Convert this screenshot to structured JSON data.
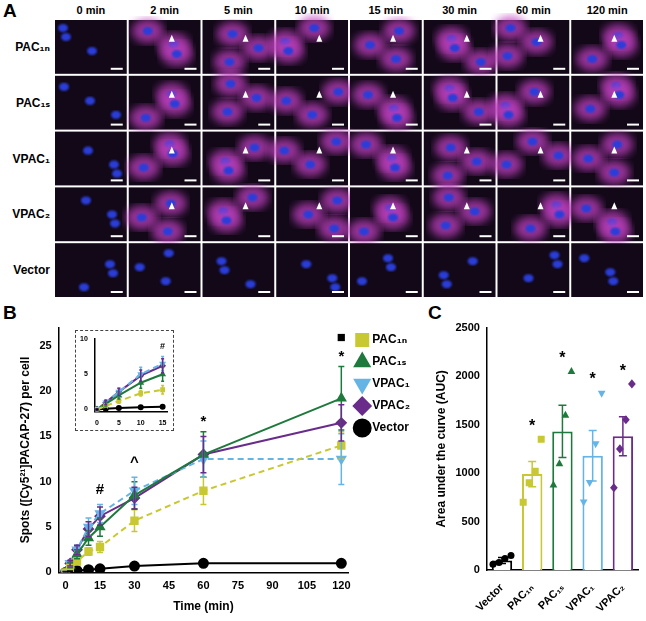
{
  "figure": {
    "panel_labels": [
      "A",
      "B",
      "C"
    ],
    "image_grid": {
      "columns": [
        "0 min",
        "2 min",
        "5 min",
        "10 min",
        "15 min",
        "30 min",
        "60 min",
        "120 min"
      ],
      "rows": [
        "PAC₁ₙ",
        "PAC₁ₛ",
        "VPAC₁",
        "VPAC₂",
        "Vector"
      ]
    }
  },
  "chart_data": [
    {
      "type": "line",
      "x_label": "Time (min)",
      "y_label": "Spots ([Cy5²¹]PACAP-27) per cell",
      "x": [
        0,
        2,
        5,
        10,
        15,
        30,
        60,
        120
      ],
      "xlim": [
        -3,
        123
      ],
      "xticks": [
        0,
        15,
        30,
        45,
        60,
        75,
        90,
        105,
        120
      ],
      "ylim": [
        0,
        27
      ],
      "yticks": [
        0,
        5,
        10,
        15,
        20,
        25
      ],
      "grid": false,
      "legend": "right",
      "series": [
        {
          "name": "PAC₁ₙ",
          "color": "#c8c832",
          "marker": "square",
          "line_style": "dashed",
          "values": [
            0,
            0.5,
            1.2,
            2.3,
            2.8,
            5.7,
            9,
            14
          ],
          "error": [
            0.1,
            0.3,
            0.3,
            0.4,
            0.6,
            1.2,
            1.5,
            1.5
          ]
        },
        {
          "name": "PAC₁ₛ",
          "color": "#1e7a3c",
          "marker": "triangle",
          "line_style": "solid",
          "values": [
            0,
            0.8,
            2,
            3.8,
            5,
            8.5,
            13,
            19.2
          ],
          "error": [
            0.1,
            0.3,
            0.5,
            0.8,
            1,
            1.5,
            2.5,
            3.5
          ]
        },
        {
          "name": "VPAC₁",
          "color": "#64b4e6",
          "marker": "triangle_down",
          "line_style": "dashed",
          "values": [
            0,
            1,
            2.5,
            5,
            6.5,
            9,
            12.5,
            12.5
          ],
          "error": [
            0.1,
            0.3,
            0.5,
            1,
            1,
            1.5,
            2,
            2.8
          ]
        },
        {
          "name": "VPAC₂",
          "color": "#6a2c8a",
          "marker": "diamond",
          "line_style": "solid",
          "values": [
            0,
            1,
            2.5,
            4.8,
            6.2,
            8.2,
            13,
            16.5
          ],
          "error": [
            0.1,
            0.3,
            0.5,
            0.8,
            1,
            1.2,
            2,
            2
          ]
        },
        {
          "name": "Vector",
          "color": "#000000",
          "marker": "circle",
          "line_style": "solid",
          "values": [
            0,
            0.1,
            0.2,
            0.3,
            0.4,
            0.7,
            1,
            1
          ],
          "error": [
            0.05,
            0.05,
            0.05,
            0.1,
            0.1,
            0.1,
            0.2,
            0.2
          ]
        }
      ],
      "annotations": [
        {
          "text": "#",
          "x": 15,
          "y": 8.3
        },
        {
          "text": "^",
          "x": 30,
          "y": 11.3
        },
        {
          "text": "*",
          "x": 60,
          "y": 15.8
        },
        {
          "text": "*",
          "x": 120,
          "y": 22.9
        },
        {
          "text": "■",
          "x": 120,
          "y": 25
        }
      ]
    },
    {
      "type": "line",
      "x": [
        0,
        2,
        5,
        10,
        15
      ],
      "xlim": [
        -0.5,
        16
      ],
      "xticks": [
        0,
        5,
        10,
        15
      ],
      "ylim": [
        -0.3,
        10
      ],
      "yticks": [
        0,
        5,
        10
      ],
      "grid": false,
      "series": [
        {
          "name": "PAC₁ₙ",
          "color": "#c8c832",
          "marker": "square",
          "line_style": "dashed",
          "values": [
            0,
            0.5,
            1.2,
            2.3,
            2.8
          ],
          "error": [
            0.1,
            0.3,
            0.3,
            0.4,
            0.6
          ]
        },
        {
          "name": "PAC₁ₛ",
          "color": "#1e7a3c",
          "marker": "triangle",
          "line_style": "solid",
          "values": [
            0,
            0.8,
            2,
            3.8,
            5
          ],
          "error": [
            0.1,
            0.3,
            0.5,
            0.8,
            1
          ]
        },
        {
          "name": "VPAC₁",
          "color": "#64b4e6",
          "marker": "triangle_down",
          "line_style": "dashed",
          "values": [
            0,
            1,
            2.5,
            5,
            6.5
          ],
          "error": [
            0.1,
            0.3,
            0.5,
            1,
            1
          ]
        },
        {
          "name": "VPAC₂",
          "color": "#6a2c8a",
          "marker": "diamond",
          "line_style": "solid",
          "values": [
            0,
            1,
            2.5,
            4.8,
            6.2
          ],
          "error": [
            0.1,
            0.3,
            0.5,
            0.8,
            1
          ]
        },
        {
          "name": "Vector",
          "color": "#000000",
          "marker": "circle",
          "line_style": "solid",
          "values": [
            0,
            0.1,
            0.2,
            0.3,
            0.4
          ],
          "error": [
            0.05,
            0.05,
            0.05,
            0.1,
            0.1
          ]
        }
      ],
      "annotations": [
        {
          "text": "#",
          "x": 15,
          "y": 8.3
        }
      ]
    },
    {
      "type": "bar",
      "y_label": "Area under the curve (AUC)",
      "categories": [
        "Vector",
        "PAC₁ₙ",
        "PAC₁ₛ",
        "VPAC₁",
        "VPAC₂"
      ],
      "ylim": [
        0,
        2500
      ],
      "yticks": [
        0,
        500,
        1000,
        1500,
        2000,
        2500
      ],
      "grid": false,
      "series": [
        {
          "name": "Vector",
          "color": "#000000",
          "marker": "circle",
          "values": [
            100,
            null,
            null,
            null,
            null
          ],
          "error": [
            30,
            null,
            null,
            null,
            null
          ],
          "points": [
            [
              60,
              80,
              120,
              150
            ],
            null,
            null,
            null,
            null
          ]
        },
        {
          "name": "PAC₁ₙ",
          "color": "#c8c832",
          "marker": "square",
          "values": [
            null,
            990,
            null,
            null,
            null
          ],
          "error": [
            null,
            130,
            null,
            null,
            null
          ],
          "points": [
            null,
            [
              700,
              900,
              1020,
              1350
            ],
            null,
            null,
            null
          ]
        },
        {
          "name": "PAC₁ₛ",
          "color": "#1e7a3c",
          "marker": "triangle",
          "values": [
            null,
            null,
            1430,
            null,
            null
          ],
          "error": [
            null,
            null,
            270,
            null,
            null
          ],
          "points": [
            null,
            null,
            [
              880,
              1100,
              1600,
              2050
            ],
            null,
            null
          ]
        },
        {
          "name": "VPAC₁",
          "color": "#64b4e6",
          "marker": "triangle_down",
          "values": [
            null,
            null,
            null,
            1180,
            null
          ],
          "error": [
            null,
            null,
            null,
            260,
            null
          ],
          "points": [
            null,
            null,
            null,
            [
              700,
              900,
              1300,
              1820
            ],
            null
          ]
        },
        {
          "name": "VPAC₂",
          "color": "#6a2c8a",
          "marker": "diamond",
          "values": [
            null,
            null,
            null,
            null,
            1380
          ],
          "error": [
            null,
            null,
            null,
            null,
            200
          ],
          "points": [
            null,
            null,
            null,
            null,
            [
              850,
              1250,
              1550,
              1920
            ]
          ]
        }
      ],
      "annotations": [
        {
          "text": "*",
          "category": "PAC₁ₙ",
          "y": 1400
        },
        {
          "text": "*",
          "category": "PAC₁ₛ",
          "y": 2100
        },
        {
          "text": "*",
          "category": "VPAC₁",
          "y": 1880
        },
        {
          "text": "*",
          "category": "VPAC₂",
          "y": 1960
        }
      ]
    }
  ]
}
